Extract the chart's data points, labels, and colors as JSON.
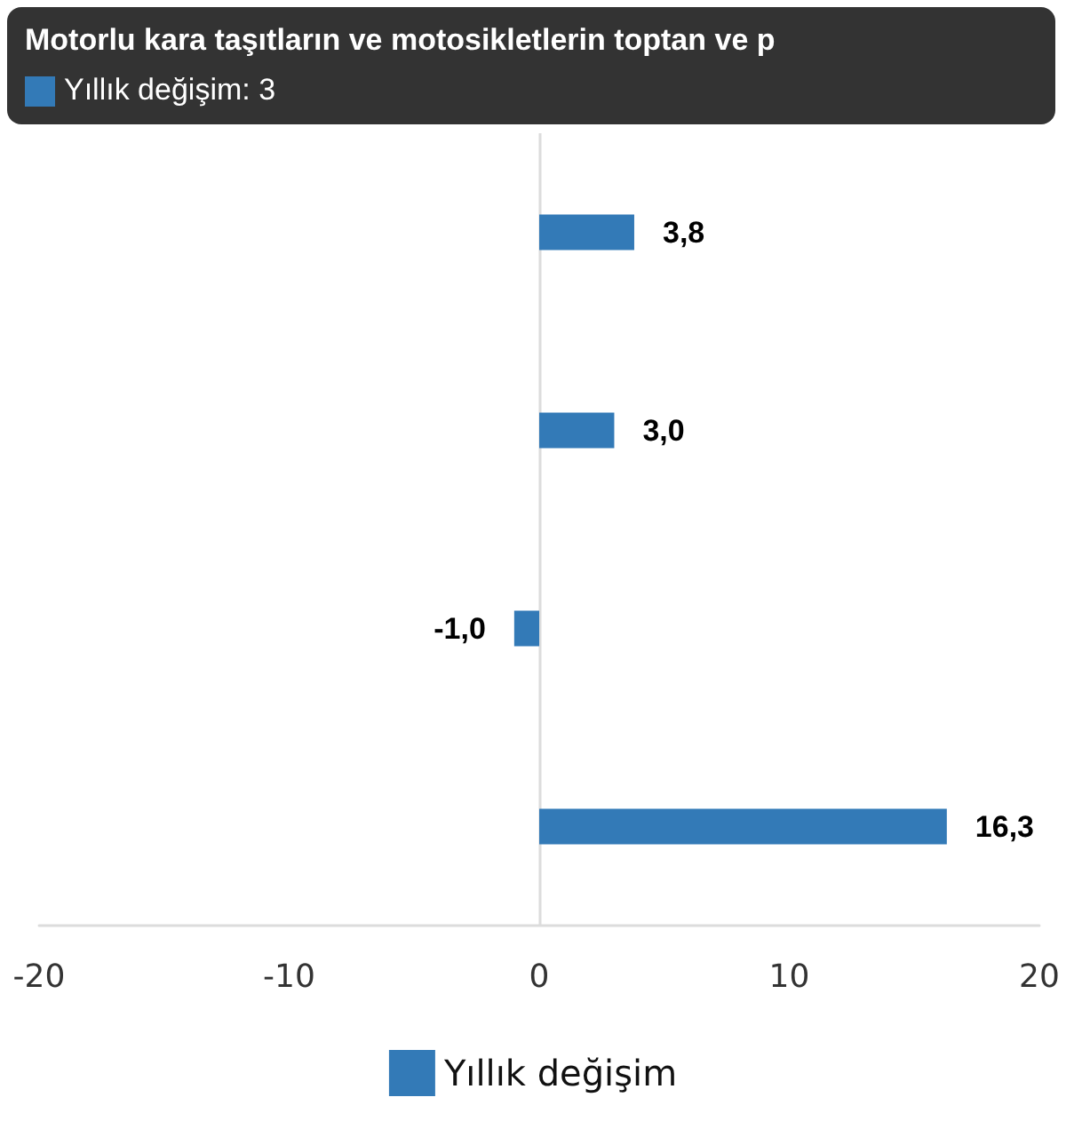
{
  "chart_data": {
    "type": "bar",
    "orientation": "horizontal",
    "categories": [
      null,
      null,
      null,
      null
    ],
    "series": [
      {
        "name": "Yıllık değişim",
        "color": "#337ab7",
        "values": [
          3.8,
          3.0,
          -1.0,
          16.3
        ],
        "value_labels": [
          "3,8",
          "3,0",
          "-1,0",
          "16,3"
        ]
      }
    ],
    "xlim": [
      -20,
      20
    ],
    "xticks": [
      -20,
      -10,
      0,
      10,
      20
    ],
    "grid": false,
    "legend": "bottom",
    "ref_lines": [
      {
        "axis": "x",
        "value": 0,
        "color": "#dcdcdc"
      }
    ],
    "annotations": [
      "Motorlu kara taşıtların ve motosikletlerin toptan ve p",
      "Yıllık değişim: 3"
    ]
  }
}
